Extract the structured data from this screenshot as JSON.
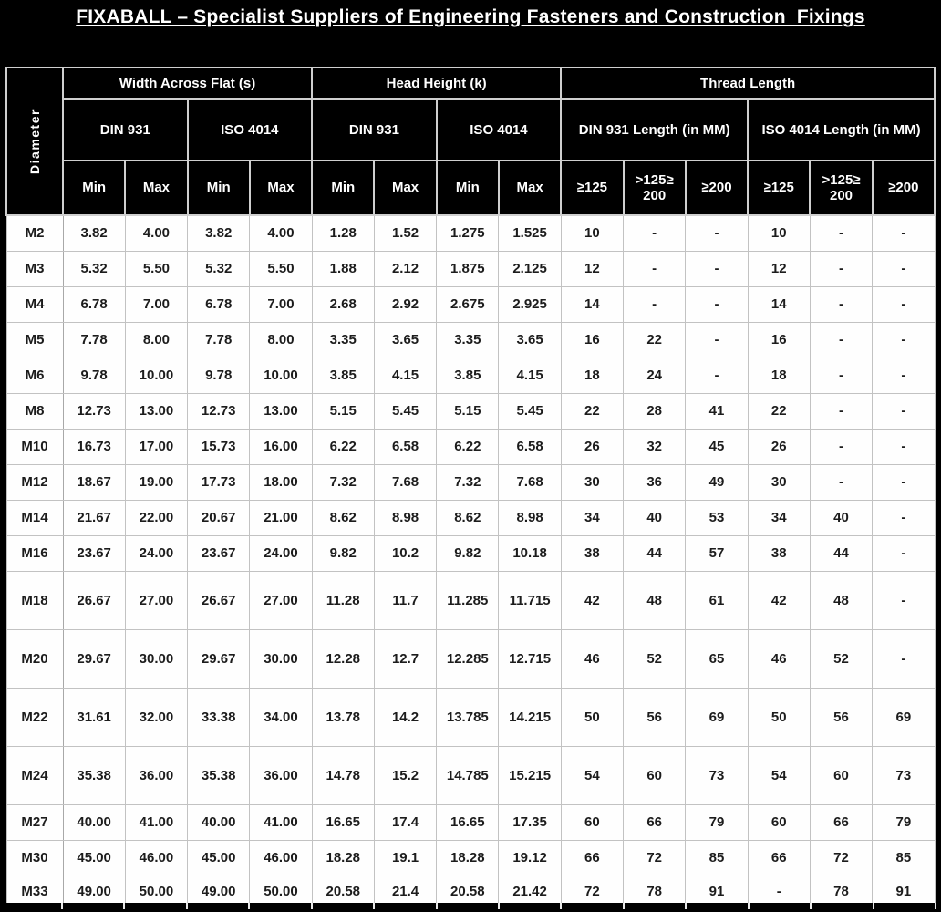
{
  "title": "FIXABALL – Specialist Suppliers of Engineering Fasteners and Construction  Fixings",
  "colors": {
    "background": "#000000",
    "header_bg": "#000000",
    "header_text": "#ffffff",
    "body_bg": "#ffffff",
    "body_text": "#1c1c1c"
  },
  "table": {
    "diameter_header": "Diameter",
    "groups": [
      {
        "label": "Width Across Flat (s)",
        "subgroups": [
          {
            "label": "DIN 931",
            "cols": [
              "Min",
              "Max"
            ]
          },
          {
            "label": "ISO 4014",
            "cols": [
              "Min",
              "Max"
            ]
          }
        ]
      },
      {
        "label": "Head Height (k)",
        "subgroups": [
          {
            "label": "DIN 931",
            "cols": [
              "Min",
              "Max"
            ]
          },
          {
            "label": "ISO 4014",
            "cols": [
              "Min",
              "Max"
            ]
          }
        ]
      },
      {
        "label": "Thread Length",
        "subgroups": [
          {
            "label": "DIN 931 Length (in MM)",
            "cols": [
              "≥125",
              ">125≥ 200",
              "≥200"
            ]
          },
          {
            "label": "ISO 4014 Length (in MM)",
            "cols": [
              "≥125",
              ">125≥ 200",
              "≥200"
            ]
          }
        ]
      }
    ],
    "rows": [
      {
        "diameter": "M2",
        "values": [
          "3.82",
          "4.00",
          "3.82",
          "4.00",
          "1.28",
          "1.52",
          "1.275",
          "1.525",
          "10",
          "-",
          "-",
          "10",
          "-",
          "-"
        ]
      },
      {
        "diameter": "M3",
        "values": [
          "5.32",
          "5.50",
          "5.32",
          "5.50",
          "1.88",
          "2.12",
          "1.875",
          "2.125",
          "12",
          "-",
          "-",
          "12",
          "-",
          "-"
        ]
      },
      {
        "diameter": "M4",
        "values": [
          "6.78",
          "7.00",
          "6.78",
          "7.00",
          "2.68",
          "2.92",
          "2.675",
          "2.925",
          "14",
          "-",
          "-",
          "14",
          "-",
          "-"
        ]
      },
      {
        "diameter": "M5",
        "values": [
          "7.78",
          "8.00",
          "7.78",
          "8.00",
          "3.35",
          "3.65",
          "3.35",
          "3.65",
          "16",
          "22",
          "-",
          "16",
          "-",
          "-"
        ]
      },
      {
        "diameter": "M6",
        "values": [
          "9.78",
          "10.00",
          "9.78",
          "10.00",
          "3.85",
          "4.15",
          "3.85",
          "4.15",
          "18",
          "24",
          "-",
          "18",
          "-",
          "-"
        ]
      },
      {
        "diameter": "M8",
        "values": [
          "12.73",
          "13.00",
          "12.73",
          "13.00",
          "5.15",
          "5.45",
          "5.15",
          "5.45",
          "22",
          "28",
          "41",
          "22",
          "-",
          "-"
        ]
      },
      {
        "diameter": "M10",
        "values": [
          "16.73",
          "17.00",
          "15.73",
          "16.00",
          "6.22",
          "6.58",
          "6.22",
          "6.58",
          "26",
          "32",
          "45",
          "26",
          "-",
          "-"
        ]
      },
      {
        "diameter": "M12",
        "values": [
          "18.67",
          "19.00",
          "17.73",
          "18.00",
          "7.32",
          "7.68",
          "7.32",
          "7.68",
          "30",
          "36",
          "49",
          "30",
          "-",
          "-"
        ]
      },
      {
        "diameter": "M14",
        "values": [
          "21.67",
          "22.00",
          "20.67",
          "21.00",
          "8.62",
          "8.98",
          "8.62",
          "8.98",
          "34",
          "40",
          "53",
          "34",
          "40",
          "-"
        ]
      },
      {
        "diameter": "M16",
        "values": [
          "23.67",
          "24.00",
          "23.67",
          "24.00",
          "9.82",
          "10.2",
          "9.82",
          "10.18",
          "38",
          "44",
          "57",
          "38",
          "44",
          "-"
        ]
      },
      {
        "diameter": "M18",
        "values": [
          "26.67",
          "27.00",
          "26.67",
          "27.00",
          "11.28",
          "11.7",
          "11.285",
          "11.715",
          "42",
          "48",
          "61",
          "42",
          "48",
          "-"
        ]
      },
      {
        "diameter": "M20",
        "values": [
          "29.67",
          "30.00",
          "29.67",
          "30.00",
          "12.28",
          "12.7",
          "12.285",
          "12.715",
          "46",
          "52",
          "65",
          "46",
          "52",
          "-"
        ]
      },
      {
        "diameter": "M22",
        "values": [
          "31.61",
          "32.00",
          "33.38",
          "34.00",
          "13.78",
          "14.2",
          "13.785",
          "14.215",
          "50",
          "56",
          "69",
          "50",
          "56",
          "69"
        ]
      },
      {
        "diameter": "M24",
        "values": [
          "35.38",
          "36.00",
          "35.38",
          "36.00",
          "14.78",
          "15.2",
          "14.785",
          "15.215",
          "54",
          "60",
          "73",
          "54",
          "60",
          "73"
        ]
      },
      {
        "diameter": "M27",
        "values": [
          "40.00",
          "41.00",
          "40.00",
          "41.00",
          "16.65",
          "17.4",
          "16.65",
          "17.35",
          "60",
          "66",
          "79",
          "60",
          "66",
          "79"
        ]
      },
      {
        "diameter": "M30",
        "values": [
          "45.00",
          "46.00",
          "45.00",
          "46.00",
          "18.28",
          "19.1",
          "18.28",
          "19.12",
          "66",
          "72",
          "85",
          "66",
          "72",
          "85"
        ]
      },
      {
        "diameter": "M33",
        "values": [
          "49.00",
          "50.00",
          "49.00",
          "50.00",
          "20.58",
          "21.4",
          "20.58",
          "21.42",
          "72",
          "78",
          "91",
          "-",
          "78",
          "91"
        ]
      }
    ]
  }
}
